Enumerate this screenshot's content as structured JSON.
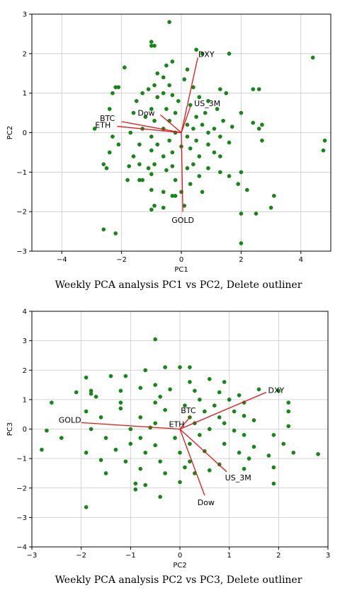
{
  "colors": {
    "points": "#138a13",
    "points_edge": "#0b5d0b",
    "vectors": "#e81515",
    "grid": "#c8c8c8",
    "axes": "#000000"
  },
  "chart_data": [
    {
      "type": "scatter",
      "title": "",
      "xlabel": "PC1",
      "ylabel": "PC2",
      "xlim": [
        -5,
        5
      ],
      "ylim": [
        -3,
        3
      ],
      "xticks": [
        -4,
        -2,
        0,
        2,
        4
      ],
      "yticks": [
        -3,
        -2,
        -1,
        0,
        1,
        2,
        3
      ],
      "grid": true,
      "caption": "Weekly PCA analysis PC1 vs PC2, Delete outliner",
      "loadings": [
        {
          "name": "DXY",
          "x": 0.55,
          "y": 1.9
        },
        {
          "name": "US_3M",
          "x": 0.3,
          "y": 0.65
        },
        {
          "name": "Dow",
          "x": -0.7,
          "y": 0.45
        },
        {
          "name": "BTC",
          "x": -2.0,
          "y": 0.28
        },
        {
          "name": "ETH",
          "x": -2.15,
          "y": 0.16
        },
        {
          "name": "GOLD",
          "x": 0.05,
          "y": -2.0
        }
      ],
      "points": [
        [
          -0.4,
          2.8
        ],
        [
          -1.0,
          2.2
        ],
        [
          -0.9,
          2.2
        ],
        [
          -1.0,
          2.3
        ],
        [
          0.5,
          2.1
        ],
        [
          0.7,
          2.0
        ],
        [
          1.6,
          2.0
        ],
        [
          4.4,
          1.9
        ],
        [
          -0.3,
          1.8
        ],
        [
          -0.5,
          1.7
        ],
        [
          0.2,
          1.6
        ],
        [
          -0.8,
          1.5
        ],
        [
          -1.9,
          1.65
        ],
        [
          -0.6,
          1.4
        ],
        [
          0.1,
          1.35
        ],
        [
          -2.1,
          1.15
        ],
        [
          -2.2,
          1.15
        ],
        [
          -1.1,
          1.1
        ],
        [
          -0.9,
          1.2
        ],
        [
          -0.4,
          1.2
        ],
        [
          0.4,
          1.15
        ],
        [
          1.3,
          1.1
        ],
        [
          2.4,
          1.1
        ],
        [
          2.6,
          1.1
        ],
        [
          -2.3,
          1.0
        ],
        [
          -1.3,
          1.0
        ],
        [
          -0.6,
          1.0
        ],
        [
          -0.3,
          0.95
        ],
        [
          0.6,
          0.9
        ],
        [
          1.5,
          1.0
        ],
        [
          -1.5,
          0.8
        ],
        [
          -0.8,
          0.9
        ],
        [
          -0.1,
          0.8
        ],
        [
          0.9,
          0.8
        ],
        [
          0.3,
          0.7
        ],
        [
          -2.4,
          0.6
        ],
        [
          -1.6,
          0.5
        ],
        [
          -1.0,
          0.6
        ],
        [
          -0.5,
          0.6
        ],
        [
          -0.2,
          0.5
        ],
        [
          0.8,
          0.5
        ],
        [
          1.2,
          0.6
        ],
        [
          2.0,
          0.5
        ],
        [
          -1.2,
          0.4
        ],
        [
          0.5,
          0.4
        ],
        [
          1.4,
          0.3
        ],
        [
          2.4,
          0.25
        ],
        [
          -0.9,
          0.3
        ],
        [
          -0.4,
          0.3
        ],
        [
          0.2,
          0.2
        ],
        [
          0.7,
          0.2
        ],
        [
          -2.9,
          0.1
        ],
        [
          -1.3,
          0.1
        ],
        [
          -0.6,
          0.1
        ],
        [
          0.4,
          0.1
        ],
        [
          1.1,
          0.1
        ],
        [
          1.7,
          0.15
        ],
        [
          2.6,
          0.1
        ],
        [
          2.7,
          0.2
        ],
        [
          -1.7,
          0.0
        ],
        [
          -0.2,
          0.0
        ],
        [
          0.9,
          0.0
        ],
        [
          -2.3,
          -0.1
        ],
        [
          -1.0,
          -0.1
        ],
        [
          0.2,
          -0.1
        ],
        [
          1.3,
          -0.1
        ],
        [
          -0.4,
          -0.2
        ],
        [
          0.5,
          -0.2
        ],
        [
          1.6,
          -0.25
        ],
        [
          2.7,
          -0.2
        ],
        [
          4.8,
          -0.2
        ],
        [
          -2.1,
          -0.3
        ],
        [
          -1.4,
          -0.3
        ],
        [
          -0.8,
          -0.3
        ],
        [
          0.0,
          -0.35
        ],
        [
          0.9,
          -0.3
        ],
        [
          -1.0,
          -0.45
        ],
        [
          -0.3,
          -0.5
        ],
        [
          0.3,
          -0.4
        ],
        [
          1.1,
          -0.5
        ],
        [
          4.75,
          -0.45
        ],
        [
          -2.4,
          -0.5
        ],
        [
          -1.6,
          -0.6
        ],
        [
          -0.6,
          -0.6
        ],
        [
          0.6,
          -0.6
        ],
        [
          1.3,
          -0.6
        ],
        [
          -1.4,
          -0.8
        ],
        [
          -0.9,
          -0.8
        ],
        [
          -0.3,
          -0.85
        ],
        [
          0.4,
          -0.8
        ],
        [
          0.9,
          -0.9
        ],
        [
          -2.6,
          -0.8
        ],
        [
          -2.5,
          -0.9
        ],
        [
          -1.75,
          -0.85
        ],
        [
          -1.1,
          -0.9
        ],
        [
          -0.5,
          -0.95
        ],
        [
          0.2,
          -0.9
        ],
        [
          1.3,
          -1.0
        ],
        [
          1.6,
          -1.1
        ],
        [
          2.0,
          -1.0
        ],
        [
          -1.0,
          -1.05
        ],
        [
          0.6,
          -1.1
        ],
        [
          -1.8,
          -1.2
        ],
        [
          -1.4,
          -1.2
        ],
        [
          -1.3,
          -1.2
        ],
        [
          -0.2,
          -1.2
        ],
        [
          0.3,
          -1.3
        ],
        [
          1.9,
          -1.3
        ],
        [
          2.2,
          -1.45
        ],
        [
          -1.0,
          -1.45
        ],
        [
          -0.6,
          -1.5
        ],
        [
          0.0,
          -1.5
        ],
        [
          0.7,
          -1.5
        ],
        [
          -0.3,
          -1.6
        ],
        [
          -0.2,
          -1.6
        ],
        [
          3.1,
          -1.6
        ],
        [
          -0.9,
          -1.85
        ],
        [
          -0.6,
          -1.9
        ],
        [
          0.1,
          -1.85
        ],
        [
          3.0,
          -1.9
        ],
        [
          -1.0,
          -1.95
        ],
        [
          2.5,
          -2.05
        ],
        [
          2.0,
          -2.05
        ],
        [
          -2.6,
          -2.45
        ],
        [
          -2.2,
          -2.55
        ],
        [
          2.0,
          -2.8
        ]
      ]
    },
    {
      "type": "scatter",
      "title": "",
      "xlabel": "PC2",
      "ylabel": "PC3",
      "xlim": [
        -3,
        3
      ],
      "ylim": [
        -4,
        4
      ],
      "xticks": [
        -3,
        -2,
        -1,
        0,
        1,
        2,
        3
      ],
      "yticks": [
        -4,
        -3,
        -2,
        -1,
        0,
        1,
        2,
        3,
        4
      ],
      "grid": true,
      "caption": "Weekly PCA analysis PC2 vs PC3, Delete outliner",
      "loadings": [
        {
          "name": "DXY",
          "x": 1.75,
          "y": 1.25
        },
        {
          "name": "BTC",
          "x": 0.2,
          "y": 0.4
        },
        {
          "name": "ETH",
          "x": 0.05,
          "y": 0.1
        },
        {
          "name": "GOLD",
          "x": -2.0,
          "y": 0.22
        },
        {
          "name": "US_3M",
          "x": 0.95,
          "y": -1.45
        },
        {
          "name": "Dow",
          "x": 0.5,
          "y": -2.25
        }
      ],
      "points": [
        [
          -0.5,
          3.05
        ],
        [
          -0.3,
          2.1
        ],
        [
          0.0,
          2.1
        ],
        [
          0.2,
          2.1
        ],
        [
          -0.7,
          2.0
        ],
        [
          -1.4,
          1.8
        ],
        [
          -1.1,
          1.8
        ],
        [
          0.6,
          1.7
        ],
        [
          -1.9,
          1.75
        ],
        [
          -1.8,
          1.3
        ],
        [
          -0.5,
          1.5
        ],
        [
          0.2,
          1.6
        ],
        [
          0.9,
          1.6
        ],
        [
          -2.1,
          1.25
        ],
        [
          -1.8,
          1.2
        ],
        [
          -1.2,
          1.3
        ],
        [
          -0.8,
          1.4
        ],
        [
          -0.2,
          1.35
        ],
        [
          0.3,
          1.3
        ],
        [
          0.8,
          1.25
        ],
        [
          1.2,
          1.15
        ],
        [
          1.6,
          1.35
        ],
        [
          2.0,
          1.3
        ],
        [
          -1.7,
          1.1
        ],
        [
          -0.4,
          1.1
        ],
        [
          0.4,
          1.0
        ],
        [
          1.0,
          1.0
        ],
        [
          -2.6,
          0.9
        ],
        [
          -1.2,
          0.9
        ],
        [
          -0.5,
          0.9
        ],
        [
          0.1,
          0.8
        ],
        [
          0.7,
          0.8
        ],
        [
          1.3,
          0.9
        ],
        [
          2.2,
          0.9
        ],
        [
          -1.9,
          0.6
        ],
        [
          -1.2,
          0.7
        ],
        [
          -0.3,
          0.65
        ],
        [
          0.5,
          0.6
        ],
        [
          1.1,
          0.6
        ],
        [
          2.2,
          0.6
        ],
        [
          -1.6,
          0.4
        ],
        [
          -0.8,
          0.4
        ],
        [
          0.2,
          0.4
        ],
        [
          0.8,
          0.4
        ],
        [
          1.3,
          0.45
        ],
        [
          -0.5,
          0.2
        ],
        [
          0.3,
          0.2
        ],
        [
          0.9,
          0.2
        ],
        [
          1.5,
          0.3
        ],
        [
          -2.7,
          -0.05
        ],
        [
          -1.8,
          0.0
        ],
        [
          -1.0,
          0.0
        ],
        [
          -0.6,
          0.05
        ],
        [
          0.6,
          0.0
        ],
        [
          1.1,
          -0.05
        ],
        [
          2.2,
          0.1
        ],
        [
          -2.4,
          -0.3
        ],
        [
          -1.5,
          -0.3
        ],
        [
          -0.8,
          -0.3
        ],
        [
          -0.1,
          -0.3
        ],
        [
          0.4,
          -0.2
        ],
        [
          1.3,
          -0.2
        ],
        [
          1.9,
          -0.2
        ],
        [
          -1.0,
          -0.5
        ],
        [
          -0.5,
          -0.55
        ],
        [
          0.2,
          -0.5
        ],
        [
          0.9,
          -0.5
        ],
        [
          1.5,
          -0.6
        ],
        [
          2.1,
          -0.5
        ],
        [
          -2.8,
          -0.7
        ],
        [
          -1.9,
          -0.8
        ],
        [
          -1.3,
          -0.7
        ],
        [
          -0.7,
          -0.8
        ],
        [
          0.0,
          -0.8
        ],
        [
          0.5,
          -0.75
        ],
        [
          1.2,
          -0.8
        ],
        [
          1.8,
          -0.9
        ],
        [
          2.3,
          -0.8
        ],
        [
          2.8,
          -0.85
        ],
        [
          -1.6,
          -1.05
        ],
        [
          -1.1,
          -1.1
        ],
        [
          -0.4,
          -1.1
        ],
        [
          0.2,
          -1.1
        ],
        [
          0.8,
          -1.2
        ],
        [
          1.4,
          -1.0
        ],
        [
          -0.8,
          -1.35
        ],
        [
          0.1,
          -1.3
        ],
        [
          0.6,
          -1.4
        ],
        [
          1.3,
          -1.35
        ],
        [
          1.9,
          -1.3
        ],
        [
          -1.5,
          -1.5
        ],
        [
          -0.3,
          -1.5
        ],
        [
          0.3,
          -1.5
        ],
        [
          -0.9,
          -1.85
        ],
        [
          -0.7,
          -1.9
        ],
        [
          0.0,
          -1.8
        ],
        [
          1.9,
          -1.85
        ],
        [
          -0.9,
          -2.05
        ],
        [
          -0.4,
          -2.3
        ],
        [
          -1.9,
          -2.65
        ]
      ]
    }
  ]
}
